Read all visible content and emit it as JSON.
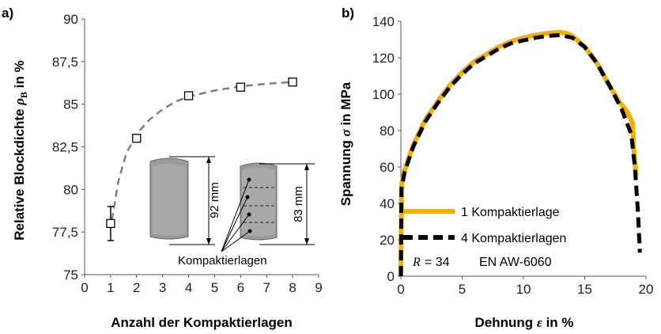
{
  "chart_data": [
    {
      "panel_label": "a)",
      "type": "scatter",
      "xlabel": "Anzahl der Kompaktierlagen",
      "ylabel": "Relative Blockdichte ρB in %",
      "xlim": [
        0,
        9
      ],
      "ylim": [
        75,
        90
      ],
      "x_ticks": [
        0,
        1,
        2,
        3,
        4,
        5,
        6,
        7,
        8,
        9
      ],
      "y_ticks": [
        "75",
        "77,5",
        "80",
        "82,5",
        "85",
        "87,5",
        "90"
      ],
      "y_tick_values": [
        75,
        77.5,
        80,
        82.5,
        85,
        87.5,
        90
      ],
      "grid": false,
      "points": [
        {
          "x": 1,
          "y": 78.0,
          "err": 1.0
        },
        {
          "x": 2,
          "y": 83.0,
          "err": 0.15
        },
        {
          "x": 4,
          "y": 85.5,
          "err": 0.1
        },
        {
          "x": 6,
          "y": 86.0,
          "err": 0.1
        },
        {
          "x": 8,
          "y": 86.3,
          "err": 0.1
        }
      ],
      "trend_line": [
        [
          1.05,
          78.2
        ],
        [
          1.3,
          80.5
        ],
        [
          1.6,
          82.1
        ],
        [
          2.0,
          83.25
        ],
        [
          2.5,
          84.1
        ],
        [
          3.0,
          84.7
        ],
        [
          3.5,
          85.15
        ],
        [
          4.0,
          85.45
        ],
        [
          5.0,
          85.8
        ],
        [
          6.0,
          86.05
        ],
        [
          7.0,
          86.2
        ],
        [
          8.0,
          86.3
        ]
      ],
      "annotations": {
        "dim_left": "92 mm",
        "dim_right": "83 mm",
        "caption": "Kompaktierlagen"
      }
    },
    {
      "panel_label": "b)",
      "type": "line",
      "xlabel": "Dehnung ε in %",
      "ylabel": "Spannung σ in MPa",
      "xlim": [
        0,
        20
      ],
      "ylim": [
        0,
        140
      ],
      "x_ticks": [
        0,
        5,
        10,
        15,
        20
      ],
      "y_ticks": [
        0,
        20,
        40,
        60,
        80,
        100,
        120,
        140
      ],
      "grid": false,
      "series": [
        {
          "name": "1 Kompaktierlage",
          "color": "#F2B100",
          "style": "solid",
          "x": [
            0,
            0.05,
            0.3,
            1,
            2,
            3,
            4,
            5,
            6,
            7,
            8,
            9,
            10,
            11,
            12,
            13,
            13.5,
            14,
            15,
            16,
            17,
            17.8,
            18.5,
            18.9,
            19.0,
            19.2
          ],
          "y": [
            0,
            50,
            58,
            72,
            86,
            96,
            105,
            112,
            118,
            122,
            126,
            129,
            131,
            132.5,
            133.5,
            134,
            133.5,
            132,
            126,
            117,
            105,
            96,
            90,
            84,
            70,
            55
          ]
        },
        {
          "name": "4 Kompaktierlagen",
          "color": "#000000",
          "style": "dashed",
          "x": [
            0,
            0.05,
            0.3,
            1,
            2,
            3,
            4,
            5,
            6,
            7,
            8,
            9,
            10,
            11,
            12,
            13,
            14,
            15,
            16,
            17,
            18,
            18.8,
            19.1,
            19.35,
            19.5
          ],
          "y": [
            0,
            48,
            57,
            71,
            85,
            95,
            104,
            111,
            117,
            121,
            125,
            128,
            129.5,
            131,
            132,
            132.5,
            131,
            126,
            117,
            105,
            92,
            78,
            60,
            35,
            13
          ]
        }
      ],
      "annotations": {
        "r_label": "R",
        "r_value": "= 34",
        "material": "EN AW-6060"
      }
    }
  ]
}
